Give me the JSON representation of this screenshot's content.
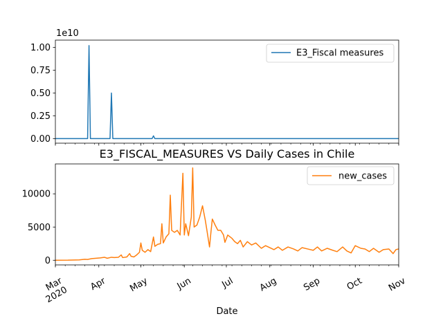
{
  "chart_data": [
    {
      "type": "line",
      "title": "",
      "xlabel": "",
      "ylabel": "",
      "y_scale_label": "1e10",
      "ylim": [
        -0.05,
        1.08
      ],
      "yticks": [
        0.0,
        0.25,
        0.5,
        0.75,
        1.0
      ],
      "ytick_labels": [
        "0.00",
        "0.25",
        "0.50",
        "0.75",
        "1.00"
      ],
      "legend_position": "top-right",
      "color": "#1f77b4",
      "series": [
        {
          "name": "E3_Fiscal measures",
          "points": [
            [
              "2020-03-01",
              0
            ],
            [
              "2020-03-24",
              0
            ],
            [
              "2020-03-25",
              1.02
            ],
            [
              "2020-03-26",
              0
            ],
            [
              "2020-04-09",
              0
            ],
            [
              "2020-04-10",
              0.5
            ],
            [
              "2020-04-11",
              0
            ],
            [
              "2020-05-09",
              0
            ],
            [
              "2020-05-10",
              0.03
            ],
            [
              "2020-05-11",
              0
            ],
            [
              "2020-11-01",
              0
            ]
          ]
        }
      ]
    },
    {
      "type": "line",
      "title": "E3_FISCAL_MEASURES VS Daily Cases in Chile",
      "xlabel": "Date",
      "ylabel": "",
      "ylim": [
        -700,
        14500
      ],
      "yticks": [
        0,
        5000,
        10000
      ],
      "ytick_labels": [
        "0",
        "5000",
        "10000"
      ],
      "x_range": [
        "2020-03-01",
        "2020-11-01"
      ],
      "xticks": [
        "2020-03-01",
        "2020-04-01",
        "2020-05-01",
        "2020-06-01",
        "2020-07-01",
        "2020-08-01",
        "2020-09-01",
        "2020-10-01",
        "2020-11-01"
      ],
      "xtick_labels": [
        "Mar\n2020",
        "Apr",
        "May",
        "Jun",
        "Jul",
        "Aug",
        "Sep",
        "Oct",
        "Nov"
      ],
      "legend_position": "top-right",
      "color": "#ff7f0e",
      "series": [
        {
          "name": "new_cases",
          "points": [
            [
              "2020-03-01",
              0
            ],
            [
              "2020-03-10",
              10
            ],
            [
              "2020-03-18",
              60
            ],
            [
              "2020-03-22",
              150
            ],
            [
              "2020-03-24",
              120
            ],
            [
              "2020-03-27",
              250
            ],
            [
              "2020-03-30",
              300
            ],
            [
              "2020-04-02",
              350
            ],
            [
              "2020-04-05",
              450
            ],
            [
              "2020-04-07",
              300
            ],
            [
              "2020-04-10",
              450
            ],
            [
              "2020-04-12",
              400
            ],
            [
              "2020-04-15",
              450
            ],
            [
              "2020-04-17",
              800
            ],
            [
              "2020-04-18",
              400
            ],
            [
              "2020-04-21",
              500
            ],
            [
              "2020-04-23",
              1000
            ],
            [
              "2020-04-24",
              600
            ],
            [
              "2020-04-26",
              500
            ],
            [
              "2020-04-28",
              800
            ],
            [
              "2020-04-30",
              1200
            ],
            [
              "2020-05-01",
              2600
            ],
            [
              "2020-05-02",
              1500
            ],
            [
              "2020-05-04",
              1200
            ],
            [
              "2020-05-06",
              1600
            ],
            [
              "2020-05-08",
              1300
            ],
            [
              "2020-05-10",
              3500
            ],
            [
              "2020-05-11",
              2100
            ],
            [
              "2020-05-13",
              2400
            ],
            [
              "2020-05-15",
              2500
            ],
            [
              "2020-05-16",
              5500
            ],
            [
              "2020-05-17",
              2600
            ],
            [
              "2020-05-19",
              3500
            ],
            [
              "2020-05-21",
              4000
            ],
            [
              "2020-05-22",
              9800
            ],
            [
              "2020-05-23",
              4500
            ],
            [
              "2020-05-25",
              4200
            ],
            [
              "2020-05-27",
              4500
            ],
            [
              "2020-05-29",
              3800
            ],
            [
              "2020-05-31",
              13100
            ],
            [
              "2020-06-01",
              3800
            ],
            [
              "2020-06-02",
              5500
            ],
            [
              "2020-06-04",
              3700
            ],
            [
              "2020-06-06",
              6500
            ],
            [
              "2020-06-07",
              13900
            ],
            [
              "2020-06-08",
              5000
            ],
            [
              "2020-06-10",
              5300
            ],
            [
              "2020-06-12",
              6500
            ],
            [
              "2020-06-14",
              8200
            ],
            [
              "2020-06-16",
              6000
            ],
            [
              "2020-06-17",
              4700
            ],
            [
              "2020-06-19",
              2000
            ],
            [
              "2020-06-20",
              4200
            ],
            [
              "2020-06-21",
              6200
            ],
            [
              "2020-06-23",
              5300
            ],
            [
              "2020-06-25",
              4500
            ],
            [
              "2020-06-27",
              4500
            ],
            [
              "2020-06-29",
              3800
            ],
            [
              "2020-06-30",
              2700
            ],
            [
              "2020-07-02",
              3800
            ],
            [
              "2020-07-05",
              3300
            ],
            [
              "2020-07-07",
              2800
            ],
            [
              "2020-07-09",
              2500
            ],
            [
              "2020-07-11",
              3000
            ],
            [
              "2020-07-13",
              2000
            ],
            [
              "2020-07-16",
              2800
            ],
            [
              "2020-07-19",
              2300
            ],
            [
              "2020-07-22",
              2600
            ],
            [
              "2020-07-26",
              1800
            ],
            [
              "2020-07-29",
              2200
            ],
            [
              "2020-08-01",
              1900
            ],
            [
              "2020-08-04",
              1600
            ],
            [
              "2020-08-07",
              2000
            ],
            [
              "2020-08-10",
              1500
            ],
            [
              "2020-08-14",
              2000
            ],
            [
              "2020-08-18",
              1700
            ],
            [
              "2020-08-21",
              1400
            ],
            [
              "2020-08-24",
              1900
            ],
            [
              "2020-08-28",
              1700
            ],
            [
              "2020-09-01",
              1500
            ],
            [
              "2020-09-04",
              2000
            ],
            [
              "2020-09-07",
              1400
            ],
            [
              "2020-09-11",
              1800
            ],
            [
              "2020-09-15",
              1500
            ],
            [
              "2020-09-18",
              1300
            ],
            [
              "2020-09-22",
              2000
            ],
            [
              "2020-09-25",
              1400
            ],
            [
              "2020-09-28",
              1100
            ],
            [
              "2020-10-01",
              2200
            ],
            [
              "2020-10-05",
              1800
            ],
            [
              "2020-10-08",
              1700
            ],
            [
              "2020-10-11",
              1300
            ],
            [
              "2020-10-14",
              1800
            ],
            [
              "2020-10-18",
              1200
            ],
            [
              "2020-10-21",
              1600
            ],
            [
              "2020-10-25",
              1700
            ],
            [
              "2020-10-28",
              1000
            ],
            [
              "2020-10-30",
              1600
            ],
            [
              "2020-11-01",
              1700
            ]
          ]
        }
      ]
    }
  ]
}
